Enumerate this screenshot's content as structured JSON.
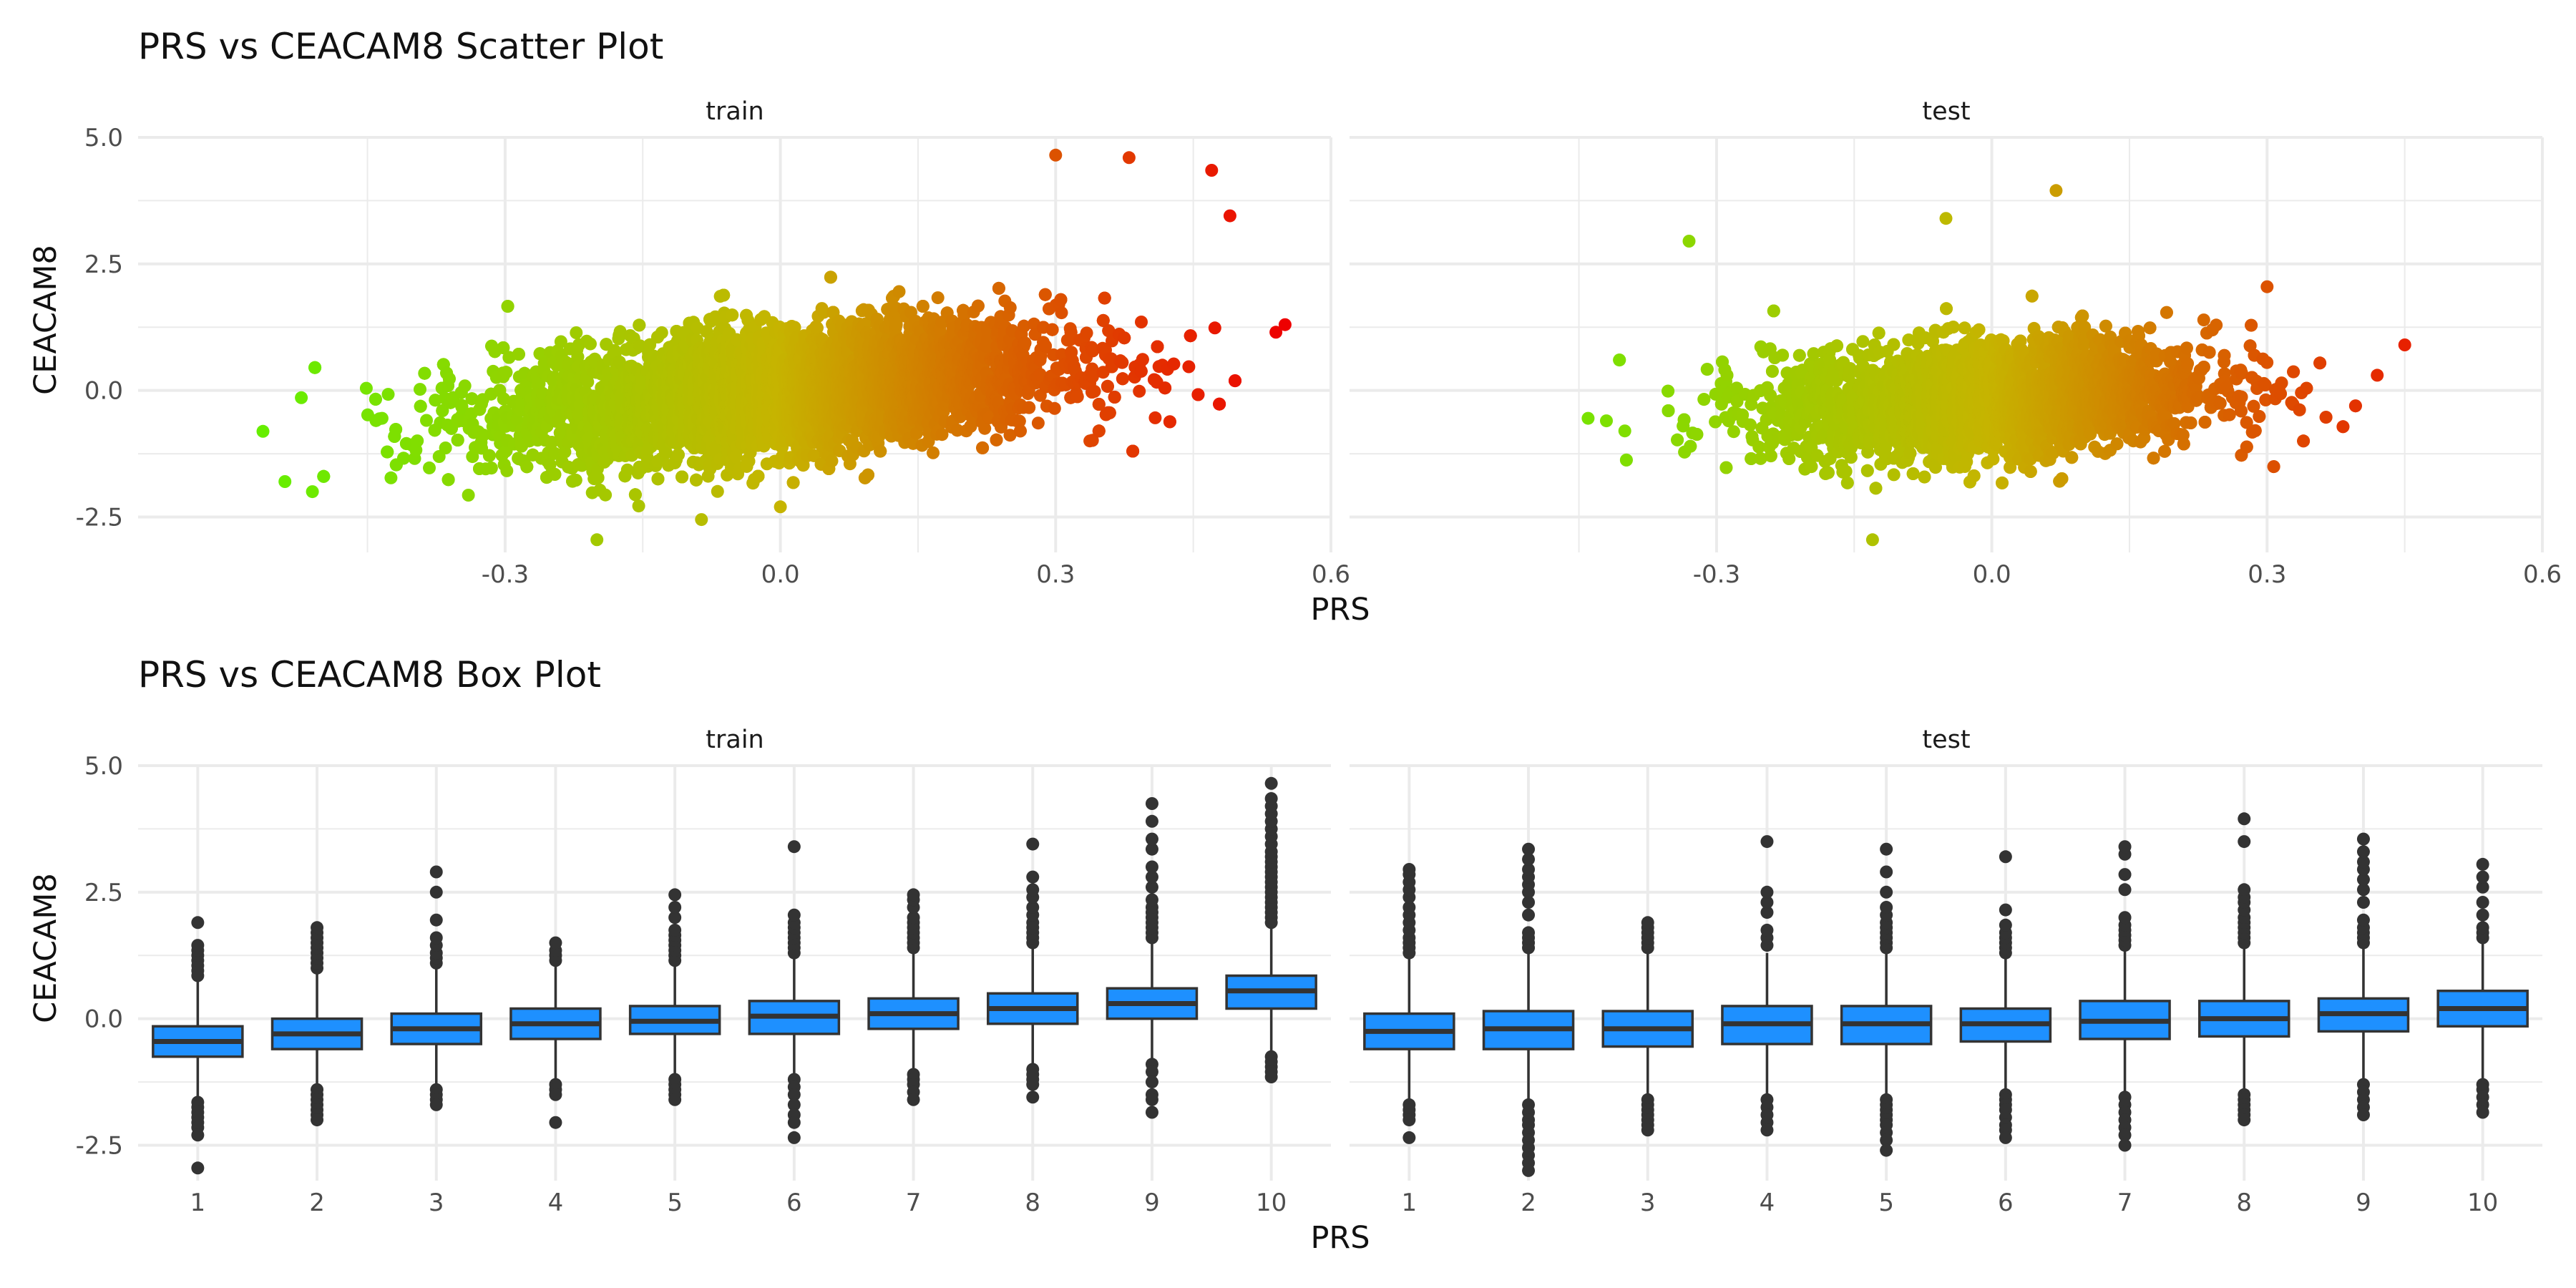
{
  "figure": {
    "scatter_title": "PRS vs CEACAM8 Scatter Plot",
    "box_title": "PRS vs CEACAM8 Box Plot",
    "xlabel": "PRS",
    "ylabel": "CEACAM8",
    "panels": [
      "train",
      "test"
    ]
  },
  "colors": {
    "gradient_low": "#66ee00",
    "gradient_mid": "#c6b400",
    "gradient_high": "#ee0000",
    "box_fill": "#1e90ff",
    "box_line": "#333333",
    "grid": "#ebebeb"
  },
  "chart_data": [
    {
      "type": "scatter",
      "title": "PRS vs CEACAM8 Scatter Plot",
      "xlabel": "PRS",
      "ylabel": "CEACAM8",
      "xlim": [
        -0.7,
        0.6
      ],
      "ylim": [
        -3.2,
        5.0
      ],
      "x_ticks": [
        "-0.3",
        "0.0",
        "0.3",
        "0.6"
      ],
      "y_ticks": [
        "5.0",
        "2.5",
        "0.0",
        "-2.5"
      ],
      "color_by": "PRS (green to red gradient)",
      "grid": true,
      "panels": [
        {
          "name": "train",
          "n_points": 9000,
          "x_mean": 0.0,
          "x_sd": 0.15,
          "slope": 1.6,
          "intercept": 0.0,
          "resid_sd": 0.6,
          "x_range": [
            -0.6,
            0.55
          ],
          "extreme_points": [
            [
              -0.54,
              -1.8
            ],
            [
              -0.51,
              -2.0
            ],
            [
              0.55,
              1.3
            ],
            [
              0.54,
              1.15
            ],
            [
              0.47,
              4.35
            ],
            [
              0.49,
              3.45
            ],
            [
              0.3,
              4.65
            ],
            [
              0.38,
              4.6
            ],
            [
              -0.2,
              -2.95
            ],
            [
              0.0,
              -2.3
            ]
          ]
        },
        {
          "name": "test",
          "n_points": 5000,
          "x_mean": 0.0,
          "x_sd": 0.12,
          "slope": 1.0,
          "intercept": -0.15,
          "resid_sd": 0.55,
          "x_range": [
            -0.46,
            0.45
          ],
          "extreme_points": [
            [
              -0.44,
              -0.55
            ],
            [
              -0.42,
              -0.6
            ],
            [
              -0.4,
              -0.8
            ],
            [
              0.45,
              0.9
            ],
            [
              0.42,
              0.3
            ],
            [
              0.07,
              3.95
            ],
            [
              -0.05,
              3.4
            ],
            [
              -0.33,
              2.95
            ],
            [
              -0.13,
              -2.95
            ],
            [
              0.3,
              2.05
            ]
          ]
        }
      ]
    },
    {
      "type": "box",
      "title": "PRS vs CEACAM8 Box Plot",
      "xlabel": "PRS",
      "ylabel": "CEACAM8",
      "categories": [
        "1",
        "2",
        "3",
        "4",
        "5",
        "6",
        "7",
        "8",
        "9",
        "10"
      ],
      "ylim": [
        -3.2,
        5.0
      ],
      "y_ticks": [
        "5.0",
        "2.5",
        "0.0",
        "-2.5"
      ],
      "grid": true,
      "panels": [
        {
          "name": "train",
          "boxes": [
            {
              "q1": -0.75,
              "median": -0.45,
              "q3": -0.15,
              "wlo": -1.55,
              "whi": 0.75,
              "out_hi": [
                0.85,
                0.95,
                1.05,
                1.15,
                1.25,
                1.35,
                1.45,
                1.9
              ],
              "out_lo": [
                -1.65,
                -1.75,
                -1.85,
                -1.95,
                -2.05,
                -2.15,
                -2.3,
                -2.95
              ]
            },
            {
              "q1": -0.6,
              "median": -0.3,
              "q3": 0.0,
              "wlo": -1.3,
              "whi": 0.9,
              "out_hi": [
                1.0,
                1.1,
                1.2,
                1.3,
                1.4,
                1.5,
                1.6,
                1.7,
                1.8
              ],
              "out_lo": [
                -1.4,
                -1.5,
                -1.6,
                -1.7,
                -1.8,
                -1.9,
                -2.0
              ]
            },
            {
              "q1": -0.5,
              "median": -0.2,
              "q3": 0.1,
              "wlo": -1.3,
              "whi": 1.0,
              "out_hi": [
                1.1,
                1.2,
                1.3,
                1.45,
                1.6,
                1.95,
                2.5,
                2.9
              ],
              "out_lo": [
                -1.4,
                -1.5,
                -1.6,
                -1.7
              ]
            },
            {
              "q1": -0.4,
              "median": -0.1,
              "q3": 0.2,
              "wlo": -1.2,
              "whi": 1.05,
              "out_hi": [
                1.15,
                1.25,
                1.35,
                1.5
              ],
              "out_lo": [
                -1.3,
                -1.4,
                -1.5,
                -2.05
              ]
            },
            {
              "q1": -0.3,
              "median": -0.05,
              "q3": 0.25,
              "wlo": -1.1,
              "whi": 1.05,
              "out_hi": [
                1.15,
                1.25,
                1.35,
                1.45,
                1.55,
                1.65,
                1.75,
                2.0,
                2.2,
                2.45
              ],
              "out_lo": [
                -1.2,
                -1.3,
                -1.4,
                -1.5,
                -1.6
              ]
            },
            {
              "q1": -0.3,
              "median": 0.05,
              "q3": 0.35,
              "wlo": -1.1,
              "whi": 1.2,
              "out_hi": [
                1.3,
                1.4,
                1.5,
                1.6,
                1.7,
                1.8,
                1.9,
                2.05,
                3.4
              ],
              "out_lo": [
                -1.2,
                -1.35,
                -1.5,
                -1.7,
                -1.9,
                -2.05,
                -2.35
              ]
            },
            {
              "q1": -0.2,
              "median": 0.1,
              "q3": 0.4,
              "wlo": -1.0,
              "whi": 1.3,
              "out_hi": [
                1.4,
                1.5,
                1.6,
                1.7,
                1.8,
                1.9,
                2.0,
                2.2,
                2.35,
                2.45
              ],
              "out_lo": [
                -1.1,
                -1.2,
                -1.3,
                -1.45,
                -1.6
              ]
            },
            {
              "q1": -0.1,
              "median": 0.2,
              "q3": 0.5,
              "wlo": -0.9,
              "whi": 1.4,
              "out_hi": [
                1.5,
                1.6,
                1.7,
                1.8,
                1.9,
                2.05,
                2.2,
                2.4,
                2.55,
                2.8,
                3.45
              ],
              "out_lo": [
                -1.0,
                -1.1,
                -1.2,
                -1.3,
                -1.55
              ]
            },
            {
              "q1": 0.0,
              "median": 0.3,
              "q3": 0.6,
              "wlo": -0.8,
              "whi": 1.5,
              "out_hi": [
                1.6,
                1.7,
                1.8,
                1.9,
                2.0,
                2.1,
                2.2,
                2.35,
                2.6,
                2.8,
                3.0,
                3.35,
                3.55,
                3.9,
                4.25
              ],
              "out_lo": [
                -0.9,
                -1.05,
                -1.25,
                -1.5,
                -1.6,
                -1.85
              ]
            },
            {
              "q1": 0.2,
              "median": 0.55,
              "q3": 0.85,
              "wlo": -0.65,
              "whi": 1.8,
              "out_hi": [
                1.9,
                2.0,
                2.1,
                2.2,
                2.3,
                2.4,
                2.5,
                2.6,
                2.7,
                2.8,
                2.9,
                3.0,
                3.1,
                3.2,
                3.3,
                3.45,
                3.6,
                3.75,
                3.9,
                4.05,
                4.2,
                4.35,
                4.65
              ],
              "out_lo": [
                -0.75,
                -0.85,
                -0.95,
                -1.05,
                -1.15
              ]
            }
          ]
        },
        {
          "name": "test",
          "boxes": [
            {
              "q1": -0.6,
              "median": -0.25,
              "q3": 0.1,
              "wlo": -1.6,
              "whi": 1.2,
              "out_hi": [
                1.3,
                1.4,
                1.5,
                1.6,
                1.75,
                1.9,
                2.05,
                2.2,
                2.4,
                2.55,
                2.7,
                2.85,
                2.95
              ],
              "out_lo": [
                -1.7,
                -1.8,
                -1.9,
                -2.0,
                -2.35
              ]
            },
            {
              "q1": -0.6,
              "median": -0.2,
              "q3": 0.15,
              "wlo": -1.6,
              "whi": 1.3,
              "out_hi": [
                1.4,
                1.5,
                1.6,
                1.7,
                2.05,
                2.3,
                2.5,
                2.65,
                2.8,
                2.95,
                3.15,
                3.35
              ],
              "out_lo": [
                -1.7,
                -1.85,
                -2.0,
                -2.1,
                -2.25,
                -2.4,
                -2.55,
                -2.7,
                -2.85,
                -3.0
              ]
            },
            {
              "q1": -0.55,
              "median": -0.2,
              "q3": 0.15,
              "wlo": -1.5,
              "whi": 1.3,
              "out_hi": [
                1.4,
                1.5,
                1.6,
                1.7,
                1.8,
                1.9
              ],
              "out_lo": [
                -1.6,
                -1.7,
                -1.8,
                -1.9,
                -2.0,
                -2.1,
                -2.2
              ]
            },
            {
              "q1": -0.5,
              "median": -0.1,
              "q3": 0.25,
              "wlo": -1.5,
              "whi": 1.3,
              "out_hi": [
                1.45,
                1.6,
                1.75,
                2.1,
                2.3,
                2.5,
                3.5
              ],
              "out_lo": [
                -1.6,
                -1.75,
                -1.9,
                -2.05,
                -2.2
              ]
            },
            {
              "q1": -0.5,
              "median": -0.1,
              "q3": 0.25,
              "wlo": -1.5,
              "whi": 1.3,
              "out_hi": [
                1.4,
                1.5,
                1.6,
                1.7,
                1.8,
                1.9,
                2.05,
                2.2,
                2.5,
                2.9,
                3.35
              ],
              "out_lo": [
                -1.6,
                -1.7,
                -1.8,
                -1.9,
                -2.0,
                -2.1,
                -2.25,
                -2.4,
                -2.6
              ]
            },
            {
              "q1": -0.45,
              "median": -0.1,
              "q3": 0.2,
              "wlo": -1.4,
              "whi": 1.2,
              "out_hi": [
                1.3,
                1.4,
                1.5,
                1.6,
                1.7,
                1.85,
                2.15,
                3.2
              ],
              "out_lo": [
                -1.5,
                -1.6,
                -1.7,
                -1.8,
                -1.95,
                -2.1,
                -2.2,
                -2.35
              ]
            },
            {
              "q1": -0.4,
              "median": -0.05,
              "q3": 0.35,
              "wlo": -1.45,
              "whi": 1.35,
              "out_hi": [
                1.45,
                1.55,
                1.65,
                1.75,
                1.85,
                2.0,
                2.55,
                2.85,
                3.25,
                3.4
              ],
              "out_lo": [
                -1.55,
                -1.7,
                -1.85,
                -2.0,
                -2.15,
                -2.3,
                -2.5
              ]
            },
            {
              "q1": -0.35,
              "median": 0.0,
              "q3": 0.35,
              "wlo": -1.4,
              "whi": 1.4,
              "out_hi": [
                1.5,
                1.6,
                1.7,
                1.8,
                1.9,
                2.0,
                2.15,
                2.3,
                2.4,
                2.55,
                3.5,
                3.95
              ],
              "out_lo": [
                -1.5,
                -1.6,
                -1.7,
                -1.8,
                -1.9,
                -2.0
              ]
            },
            {
              "q1": -0.25,
              "median": 0.1,
              "q3": 0.4,
              "wlo": -1.2,
              "whi": 1.4,
              "out_hi": [
                1.5,
                1.6,
                1.7,
                1.8,
                1.95,
                2.3,
                2.55,
                2.75,
                2.95,
                3.1,
                3.3,
                3.55
              ],
              "out_lo": [
                -1.3,
                -1.45,
                -1.6,
                -1.75,
                -1.9
              ]
            },
            {
              "q1": -0.15,
              "median": 0.2,
              "q3": 0.55,
              "wlo": -1.2,
              "whi": 1.5,
              "out_hi": [
                1.6,
                1.7,
                1.8,
                2.05,
                2.3,
                2.6,
                2.8,
                3.05
              ],
              "out_lo": [
                -1.3,
                -1.4,
                -1.55,
                -1.7,
                -1.85
              ]
            }
          ]
        }
      ]
    }
  ]
}
